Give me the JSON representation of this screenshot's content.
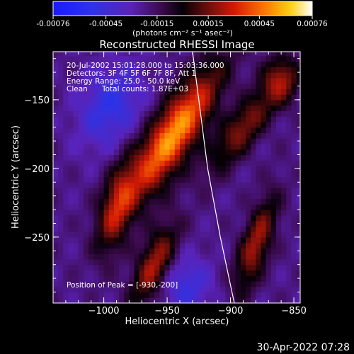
{
  "colorbar": {
    "ticks": [
      "-0.00076",
      "-0.00045",
      "-0.00015",
      "0.00015",
      "0.00045",
      "0.00076"
    ],
    "unit_label": "(photons cm⁻² s⁻¹ asec⁻²)",
    "range": [
      -0.00076,
      0.00076
    ]
  },
  "chart_data": {
    "type": "heatmap",
    "title": "Reconstructed RHESSI Image",
    "xlabel": "Heliocentric X (arcsec)",
    "ylabel": "Heliocentric Y (arcsec)",
    "xlim": [
      -1040,
      -845
    ],
    "ylim": [
      -298,
      -115
    ],
    "xticks": [
      -1000,
      -950,
      -900,
      -850
    ],
    "xtick_labels": [
      "−1000",
      "−950",
      "−900",
      "−850"
    ],
    "yticks": [
      -150,
      -200,
      -250
    ],
    "ytick_labels": [
      "−150",
      "−200",
      "−250"
    ],
    "colormap": "RHESSI (blue-violet-black-red-yellow-white)",
    "annotations": [
      "20-Jul-2002 15:01:28.000 to 15:03:36.000",
      "Detectors: 3F 4F 5F 6F 7F 8F, Att 1",
      "Energy Range: 25.0 - 50.0 keV",
      "Clean",
      "Total counts: 1.87E+03"
    ],
    "peak": {
      "label": "Position of Peak = [-930,-200]",
      "x": -930,
      "y": -200
    },
    "limb_curve": [
      [
        -930,
        -115
      ],
      [
        -925,
        -150
      ],
      [
        -918,
        -200
      ],
      [
        -908,
        -250
      ],
      [
        -897,
        -298
      ]
    ],
    "sources": [
      {
        "x": -945,
        "y": -175,
        "amplitude": 0.00076,
        "sx": 12,
        "sy": 40,
        "angle": 35
      },
      {
        "x": -990,
        "y": -228,
        "amplitude": 0.00042,
        "sx": 9,
        "sy": 24,
        "angle": 15
      },
      {
        "x": -890,
        "y": -170,
        "amplitude": 0.0004,
        "sx": 9,
        "sy": 28,
        "angle": 40
      },
      {
        "x": -960,
        "y": -270,
        "amplitude": 0.00048,
        "sx": 9,
        "sy": 22,
        "angle": 25
      },
      {
        "x": -880,
        "y": -255,
        "amplitude": 0.00045,
        "sx": 8,
        "sy": 26,
        "angle": 20
      },
      {
        "x": -860,
        "y": -135,
        "amplitude": 0.00038,
        "sx": 10,
        "sy": 12,
        "angle": 0
      },
      {
        "x": -995,
        "y": -155,
        "amplitude": -0.0003,
        "sx": 16,
        "sy": 22,
        "angle": 30
      },
      {
        "x": -935,
        "y": -285,
        "amplitude": -0.00025,
        "sx": 14,
        "sy": 16,
        "angle": 0
      }
    ]
  },
  "footer": {
    "timestamp": "30-Apr-2022 07:28"
  }
}
